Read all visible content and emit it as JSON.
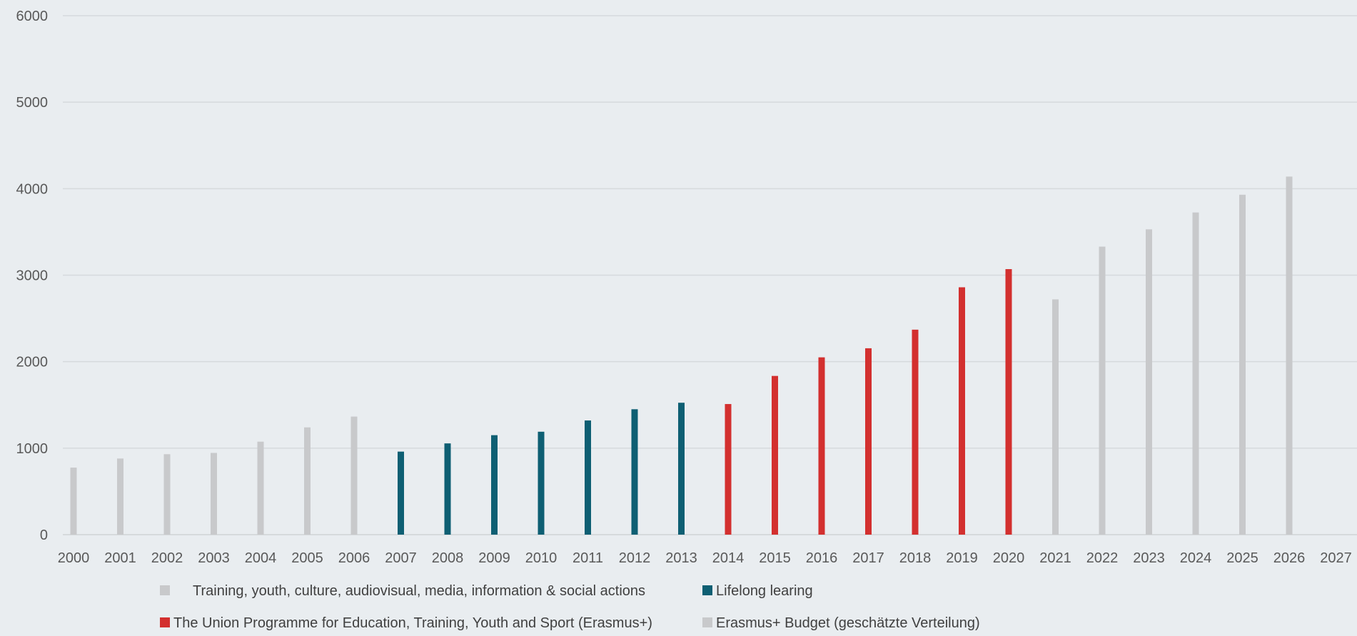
{
  "chart_data": {
    "type": "bar",
    "title": "",
    "xlabel": "",
    "ylabel": "",
    "ylim": [
      0,
      6000
    ],
    "yticks": [
      0,
      1000,
      2000,
      3000,
      4000,
      5000,
      6000
    ],
    "grid": true,
    "legend_placement": "bottom",
    "categories": [
      "2000",
      "2001",
      "2002",
      "2003",
      "2004",
      "2005",
      "2006",
      "2007",
      "2008",
      "2009",
      "2010",
      "2011",
      "2012",
      "2013",
      "2014",
      "2015",
      "2016",
      "2017",
      "2018",
      "2019",
      "2020",
      "2021",
      "2022",
      "2023",
      "2024",
      "2025",
      "2026",
      "2027"
    ],
    "series": [
      {
        "name": "Training, youth, culture, audiovisual, media, information & social actions",
        "color": "#c8c9cb",
        "values": [
          775,
          880,
          930,
          945,
          1075,
          1240,
          1365,
          null,
          null,
          null,
          null,
          null,
          null,
          null,
          null,
          null,
          null,
          null,
          null,
          null,
          null,
          null,
          null,
          null,
          null,
          null,
          null,
          null
        ]
      },
      {
        "name": "Lifelong learing",
        "color": "#0e5f73",
        "values": [
          null,
          null,
          null,
          null,
          null,
          null,
          null,
          960,
          1055,
          1150,
          1190,
          1320,
          1450,
          1525,
          null,
          null,
          null,
          null,
          null,
          null,
          null,
          null,
          null,
          null,
          null,
          null,
          null,
          null
        ]
      },
      {
        "name": "The Union Programme for Education, Training, Youth and Sport (Erasmus+)",
        "color": "#d3302f",
        "values": [
          null,
          null,
          null,
          null,
          null,
          null,
          null,
          null,
          null,
          null,
          null,
          null,
          null,
          null,
          1510,
          1835,
          2050,
          2155,
          2370,
          2860,
          3070,
          null,
          null,
          null,
          null,
          null,
          null,
          null
        ]
      },
      {
        "name": "Erasmus+ Budget (geschätzte Verteilung)",
        "color": "#c8c9cb",
        "values": [
          null,
          null,
          null,
          null,
          null,
          null,
          null,
          null,
          null,
          null,
          null,
          null,
          null,
          null,
          null,
          null,
          null,
          null,
          null,
          null,
          null,
          2720,
          3330,
          3530,
          3725,
          3930,
          4140,
          null
        ]
      }
    ]
  }
}
